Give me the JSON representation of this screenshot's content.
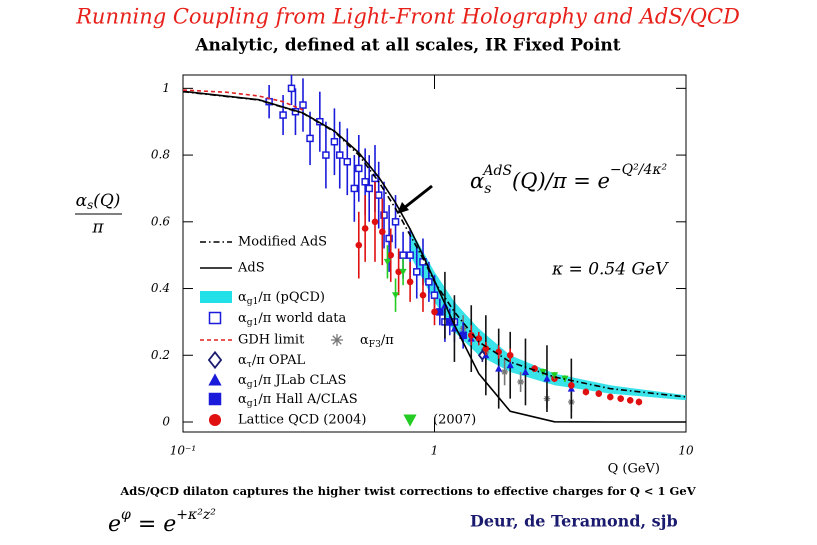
{
  "header": {
    "title": "Running Coupling from Light-Front Holography and AdS/QCD",
    "subtitle": "Analytic, defined at all scales, IR Fixed Point"
  },
  "chart_data": {
    "type": "scatter",
    "xscale": "log",
    "xlabel": "Q (GeV)",
    "ylabel": {
      "numerator": "αs(Q)",
      "denominator": "π"
    },
    "xlim": [
      0.1,
      10
    ],
    "xticks": [
      {
        "value": 0.1,
        "label": "10⁻¹"
      },
      1,
      10
    ],
    "ylim": [
      -0.03,
      1.04
    ],
    "yticks": [
      0,
      0.2,
      0.4,
      0.6,
      0.8,
      1
    ],
    "formula": {
      "base": "α",
      "sub": "s",
      "sup": "AdS",
      "rest": "(Q)/π = e",
      "exp": "−Q²/4κ²"
    },
    "kappa": "κ = 0.54 GeV",
    "series": [
      {
        "name": "Modified AdS",
        "kind": "line",
        "linestyle": "dashdot",
        "color": "#000000",
        "x": [
          0.1,
          0.2,
          0.3,
          0.4,
          0.5,
          0.6,
          0.7,
          0.8,
          0.9,
          1.0,
          1.2,
          1.5,
          2,
          3,
          5,
          10
        ],
        "values": [
          0.99,
          0.965,
          0.925,
          0.87,
          0.8,
          0.72,
          0.64,
          0.56,
          0.49,
          0.42,
          0.33,
          0.24,
          0.18,
          0.135,
          0.1,
          0.075
        ]
      },
      {
        "name": "AdS",
        "kind": "line",
        "linestyle": "solid",
        "color": "#000000",
        "x": [
          0.1,
          0.2,
          0.3,
          0.4,
          0.5,
          0.6,
          0.7,
          0.8,
          0.9,
          1.0,
          1.2,
          1.5,
          2,
          3,
          5,
          10
        ],
        "values": [
          0.991,
          0.966,
          0.926,
          0.872,
          0.807,
          0.734,
          0.657,
          0.578,
          0.499,
          0.424,
          0.291,
          0.145,
          0.032,
          0.0005,
          0,
          0
        ]
      },
      {
        "name": "αg1/π (pQCD)",
        "kind": "band",
        "color": "#22e0e8",
        "x": [
          0.8,
          1,
          1.2,
          1.5,
          2,
          3,
          5,
          10
        ],
        "low": [
          0.5,
          0.36,
          0.27,
          0.2,
          0.15,
          0.11,
          0.085,
          0.065
        ],
        "high": [
          0.58,
          0.45,
          0.36,
          0.28,
          0.2,
          0.145,
          0.11,
          0.08
        ]
      },
      {
        "name": "αg1/π world data",
        "kind": "points",
        "marker": "square-open",
        "color": "#1a1adb",
        "x": [
          0.22,
          0.25,
          0.27,
          0.28,
          0.3,
          0.32,
          0.35,
          0.37,
          0.4,
          0.42,
          0.45,
          0.48,
          0.5,
          0.53,
          0.55,
          0.58,
          0.6,
          0.63,
          0.66,
          0.7,
          0.75,
          0.8,
          0.85,
          0.9,
          0.95,
          1.0,
          1.1,
          1.2
        ],
        "values": [
          0.96,
          0.92,
          1.0,
          0.93,
          0.95,
          0.85,
          0.9,
          0.8,
          0.84,
          0.8,
          0.78,
          0.7,
          0.76,
          0.72,
          0.7,
          0.73,
          0.68,
          0.62,
          0.55,
          0.6,
          0.5,
          0.5,
          0.45,
          0.48,
          0.42,
          0.38,
          0.3,
          0.3
        ],
        "errors": [
          0.05,
          0.06,
          0.05,
          0.07,
          0.08,
          0.08,
          0.09,
          0.1,
          0.1,
          0.1,
          0.1,
          0.1,
          0.1,
          0.1,
          0.1,
          0.1,
          0.1,
          0.1,
          0.1,
          0.08,
          0.07,
          0.08,
          0.08,
          0.07,
          0.06,
          0.06,
          0.06,
          0.06
        ]
      },
      {
        "name": "GDH limit",
        "kind": "line",
        "linestyle": "dashed",
        "color": "#e02020",
        "x": [
          0.1,
          0.15,
          0.2,
          0.25,
          0.3
        ],
        "values": [
          0.995,
          0.988,
          0.977,
          0.96,
          0.935
        ]
      },
      {
        "name": "αF3/π",
        "kind": "points",
        "marker": "asterisk",
        "color": "#777777",
        "x": [
          1.3,
          1.6,
          1.9,
          2.2,
          2.8,
          3.5
        ],
        "values": [
          0.28,
          0.21,
          0.15,
          0.12,
          0.07,
          0.06
        ],
        "errors": [
          0.04,
          0.04,
          0.04,
          0.03,
          0.03,
          0.03
        ]
      },
      {
        "name": "ατ/π OPAL",
        "kind": "points",
        "marker": "diamond",
        "color": "#1a1a6e",
        "x": [
          1.55
        ],
        "values": [
          0.2
        ],
        "errors": [
          0.02
        ]
      },
      {
        "name": "αg1/π JLab CLAS",
        "kind": "points",
        "marker": "triangle",
        "color": "#1a1adb",
        "error_color": "#111111",
        "x": [
          1.1,
          1.2,
          1.4,
          1.6,
          1.8,
          2.0,
          2.3,
          2.8,
          3.5
        ],
        "values": [
          0.35,
          0.28,
          0.25,
          0.2,
          0.16,
          0.17,
          0.15,
          0.13,
          0.1
        ],
        "errors": [
          0.1,
          0.1,
          0.1,
          0.12,
          0.12,
          0.1,
          0.1,
          0.1,
          0.09
        ]
      },
      {
        "name": "αg1/π Hall A/CLAS",
        "kind": "points",
        "marker": "square",
        "color": "#1a1adb",
        "x": [
          1.05,
          1.15,
          1.3
        ],
        "values": [
          0.33,
          0.3,
          0.26
        ],
        "errors": [
          0.04,
          0.04,
          0.04
        ]
      },
      {
        "name": "Lattice QCD (2004)",
        "kind": "points",
        "marker": "circle",
        "color": "#e01010",
        "x": [
          0.5,
          0.53,
          0.58,
          0.62,
          0.67,
          0.72,
          0.8,
          0.9,
          1.0,
          1.4,
          1.5,
          1.6,
          1.8,
          2.0,
          2.5,
          3,
          3.5,
          4,
          4.5,
          5,
          5.5,
          6,
          6.5
        ],
        "values": [
          0.53,
          0.58,
          0.6,
          0.57,
          0.5,
          0.45,
          0.42,
          0.38,
          0.33,
          0.26,
          0.25,
          0.22,
          0.21,
          0.2,
          0.16,
          0.13,
          0.11,
          0.09,
          0.085,
          0.075,
          0.07,
          0.065,
          0.06
        ],
        "errors": [
          0.1,
          0.1,
          0.12,
          0.1,
          0.08,
          0.07,
          0.06,
          0.05,
          0.04,
          0.03,
          0.02,
          0.02,
          0.02,
          0.02,
          0.01,
          0.01,
          0.01,
          0.01,
          0.01,
          0.01,
          0.01,
          0.01,
          0.01
        ]
      },
      {
        "name": "(2007)",
        "kind": "points",
        "marker": "triangle-down",
        "color": "#22cc22",
        "x": [
          0.65,
          0.7,
          0.75,
          2.7,
          3.0,
          3.3
        ],
        "values": [
          0.48,
          0.38,
          0.45,
          0.15,
          0.14,
          0.13
        ],
        "errors": [
          0.05,
          0.05,
          0.04,
          0.01,
          0.01,
          0.01
        ]
      }
    ]
  },
  "footer": {
    "note": "AdS/QCD dilaton captures the higher twist corrections to  effective charges for Q < 1 GeV",
    "dilaton": {
      "base": "e",
      "sup": "φ",
      "rest": " = e",
      "exp": "+κ²z²"
    },
    "authors": "Deur,  de Teramond, sjb"
  }
}
